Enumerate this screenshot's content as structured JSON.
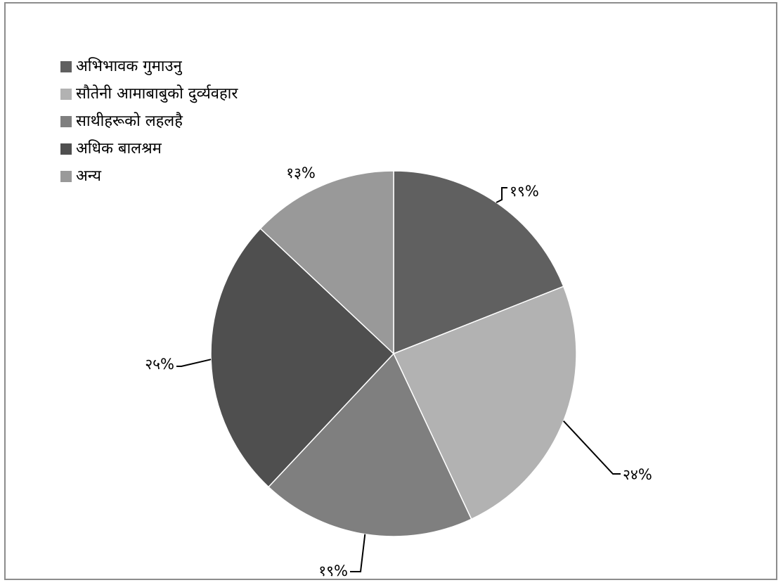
{
  "chart_data": {
    "type": "pie",
    "categories": [
      "अभिभावक गुमाउनु",
      "सौतेनी आमाबाबुको दुर्व्यवहार",
      "साथीहरूको लहलहै",
      "अधिक बालश्रम",
      "अन्य"
    ],
    "values": [
      19,
      24,
      19,
      25,
      13
    ],
    "labels": [
      "१९%",
      "२४%",
      "१९%",
      "२५%",
      "१३%"
    ],
    "colors": [
      "#606060",
      "#b2b2b2",
      "#7f7f7f",
      "#4f4f4f",
      "#999999"
    ],
    "legend_position": "top-left",
    "start_angle": "12 o'clock, clockwise"
  }
}
